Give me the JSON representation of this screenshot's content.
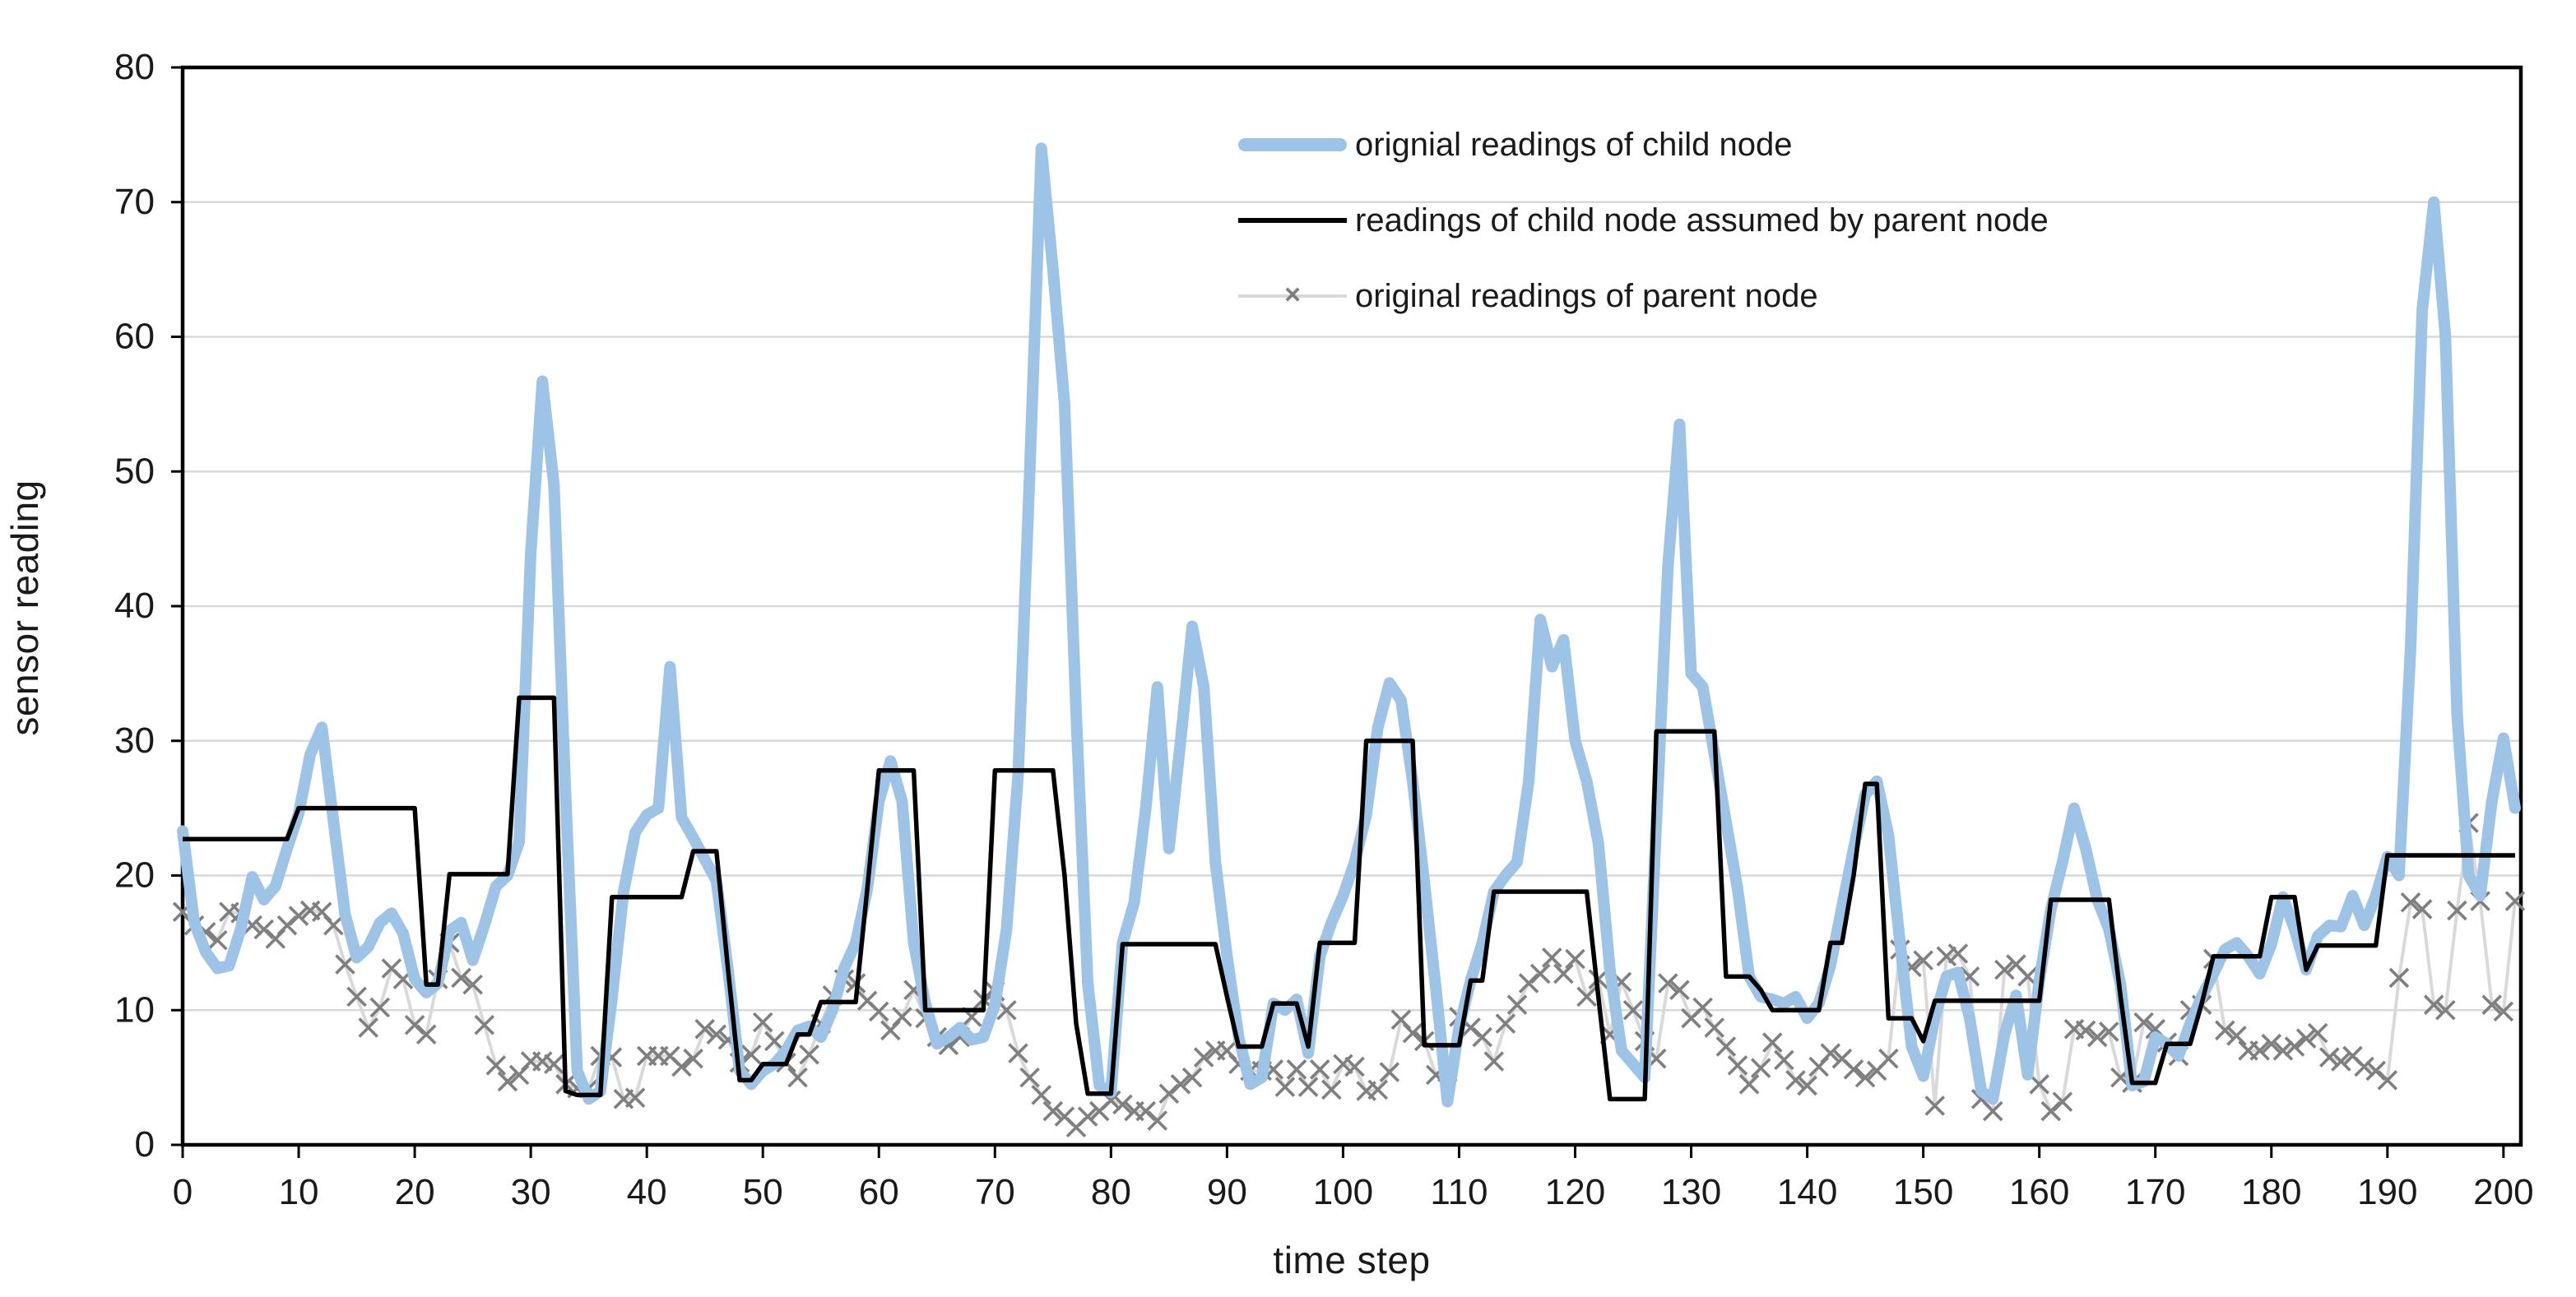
{
  "chart_data": {
    "type": "line",
    "title": "",
    "xlabel": "time step",
    "ylabel": "sensor reading",
    "xlim": [
      0,
      201.5
    ],
    "ylim": [
      0,
      80
    ],
    "x_ticks": [
      0,
      10,
      20,
      30,
      40,
      50,
      60,
      70,
      80,
      90,
      100,
      110,
      120,
      130,
      140,
      150,
      160,
      170,
      180,
      190,
      200
    ],
    "y_ticks": [
      0,
      10,
      20,
      30,
      40,
      50,
      60,
      70,
      80
    ],
    "grid": "horizontal",
    "gridline_color": "#D9D9D9",
    "frame_color": "#000000",
    "tick_label_color": "#1a1a1a",
    "x_step": 1,
    "legend_position": "top-center-inside",
    "series": [
      {
        "label": "orignial readings of child node",
        "color": "#9DC3E6",
        "style": "thick-line",
        "values": [
          23.3,
          16.5,
          14.3,
          13.1,
          13.3,
          16.0,
          19.9,
          18.2,
          19.2,
          22.0,
          24.6,
          29.0,
          31.0,
          24.0,
          17.1,
          13.9,
          14.7,
          16.5,
          17.2,
          15.7,
          12.3,
          11.3,
          12.0,
          15.9,
          16.5,
          13.7,
          16.3,
          19.2,
          20.0,
          22.5,
          44.0,
          56.7,
          49.0,
          26.0,
          5.5,
          3.4,
          4.0,
          10.9,
          18.8,
          23.2,
          24.5,
          25.0,
          35.5,
          24.3,
          22.8,
          21.2,
          19.6,
          13.0,
          5.5,
          4.5,
          5.5,
          6.0,
          7.0,
          8.5,
          8.8,
          8.0,
          10.0,
          13.1,
          15.0,
          19.0,
          25.5,
          28.5,
          25.5,
          15.0,
          10.5,
          7.5,
          8.0,
          8.7,
          7.8,
          8.0,
          10.4,
          16.0,
          27.5,
          50.0,
          74.0,
          65.0,
          55.0,
          32.0,
          12.0,
          4.4,
          3.9,
          15.0,
          18.0,
          25.0,
          34.0,
          22.0,
          30.0,
          38.5,
          34.0,
          21.0,
          14.0,
          8.0,
          4.5,
          5.0,
          10.5,
          10.0,
          10.8,
          6.8,
          14.0,
          16.5,
          18.5,
          21.0,
          24.5,
          31.0,
          34.3,
          33.0,
          27.0,
          19.5,
          11.6,
          3.2,
          8.7,
          12.2,
          15.0,
          18.8,
          20.0,
          21.0,
          27.0,
          39.0,
          35.5,
          37.5,
          30.0,
          27.0,
          22.4,
          13.0,
          7.0,
          6.0,
          5.0,
          24.0,
          43.0,
          53.5,
          35.0,
          34.0,
          29.0,
          24.0,
          19.0,
          12.5,
          11.0,
          10.8,
          10.5,
          11.0,
          9.4,
          10.5,
          13.3,
          17.7,
          22.0,
          26.0,
          27.0,
          23.0,
          15.0,
          7.3,
          5.1,
          9.5,
          12.5,
          12.8,
          9.4,
          4.0,
          3.4,
          8.2,
          11.1,
          5.2,
          12.2,
          17.5,
          21.0,
          25.0,
          22.0,
          18.2,
          16.0,
          11.9,
          4.4,
          4.7,
          8.0,
          7.5,
          6.6,
          9.0,
          11.0,
          12.7,
          14.5,
          15.0,
          14.0,
          12.7,
          14.9,
          18.4,
          16.0,
          13.0,
          15.5,
          16.3,
          16.2,
          18.5,
          16.3,
          18.5,
          21.4,
          20.0,
          37.0,
          62.0,
          70.0,
          60.0,
          32.0,
          20.0,
          18.5,
          25.5,
          30.2,
          25.0
        ]
      },
      {
        "label": "readings of child node assumed by parent node",
        "color": "#000000",
        "style": "line",
        "values": [
          22.7,
          22.7,
          22.7,
          22.7,
          22.7,
          22.7,
          22.7,
          22.7,
          22.7,
          22.7,
          25.0,
          25.0,
          25.0,
          25.0,
          25.0,
          25.0,
          25.0,
          25.0,
          25.0,
          25.0,
          25.0,
          11.9,
          11.9,
          20.1,
          20.1,
          20.1,
          20.1,
          20.1,
          20.1,
          33.2,
          33.2,
          33.2,
          33.2,
          4.0,
          3.7,
          3.7,
          3.7,
          18.4,
          18.4,
          18.4,
          18.4,
          18.4,
          18.4,
          18.4,
          21.8,
          21.8,
          21.8,
          13.0,
          4.8,
          4.8,
          6.0,
          6.0,
          6.0,
          8.2,
          8.2,
          10.6,
          10.6,
          10.6,
          10.6,
          19.0,
          27.8,
          27.8,
          27.8,
          27.8,
          10.0,
          10.0,
          10.0,
          10.0,
          10.0,
          10.0,
          27.8,
          27.8,
          27.8,
          27.8,
          27.8,
          27.8,
          20.0,
          9.0,
          3.8,
          3.8,
          3.8,
          14.9,
          14.9,
          14.9,
          14.9,
          14.9,
          14.9,
          14.9,
          14.9,
          14.9,
          11.0,
          7.3,
          7.3,
          7.3,
          10.5,
          10.5,
          10.5,
          7.3,
          15.0,
          15.0,
          15.0,
          15.0,
          30.0,
          30.0,
          30.0,
          30.0,
          30.0,
          7.4,
          7.4,
          7.4,
          7.4,
          12.2,
          12.2,
          18.8,
          18.8,
          18.8,
          18.8,
          18.8,
          18.8,
          18.8,
          18.8,
          18.8,
          11.0,
          3.4,
          3.4,
          3.4,
          3.4,
          30.7,
          30.7,
          30.7,
          30.7,
          30.7,
          30.7,
          12.5,
          12.5,
          12.5,
          11.5,
          10.0,
          10.0,
          10.0,
          10.0,
          10.0,
          15.0,
          15.0,
          20.0,
          26.8,
          26.8,
          9.4,
          9.4,
          9.4,
          7.7,
          10.7,
          10.7,
          10.7,
          10.7,
          10.7,
          10.7,
          10.7,
          10.7,
          10.7,
          10.7,
          18.2,
          18.2,
          18.2,
          18.2,
          18.2,
          18.2,
          11.0,
          4.6,
          4.6,
          4.6,
          7.5,
          7.5,
          7.5,
          10.5,
          14.0,
          14.0,
          14.0,
          14.0,
          14.0,
          18.4,
          18.4,
          18.4,
          13.0,
          14.8,
          14.8,
          14.8,
          14.8,
          14.8,
          14.8,
          21.5,
          21.5,
          21.5,
          21.5,
          21.5,
          21.5,
          21.5,
          21.5,
          21.5,
          21.5,
          21.5,
          21.5
        ]
      },
      {
        "label": "original readings of parent node",
        "color": "#D9D9D9",
        "marker": "x",
        "marker_color": "#7F7F7F",
        "style": "line-x-marker",
        "values": [
          17.3,
          16.3,
          15.8,
          15.2,
          17.3,
          17.2,
          16.3,
          16.0,
          15.3,
          16.3,
          17.0,
          17.4,
          17.3,
          16.3,
          13.4,
          11.0,
          8.7,
          10.2,
          13.1,
          12.3,
          8.9,
          8.2,
          12.3,
          15.0,
          12.4,
          11.9,
          8.9,
          5.9,
          4.7,
          5.2,
          6.2,
          6.2,
          6.0,
          4.5,
          4.2,
          4.2,
          6.6,
          6.5,
          3.4,
          3.5,
          6.6,
          6.6,
          6.6,
          5.8,
          6.4,
          8.6,
          8.2,
          7.8,
          6.1,
          6.7,
          9.1,
          7.7,
          6.1,
          5.0,
          6.7,
          9.0,
          11.1,
          12.3,
          12.0,
          10.7,
          9.9,
          8.5,
          9.5,
          11.5,
          9.4,
          8.0,
          7.4,
          8.0,
          9.5,
          10.8,
          11.4,
          10.0,
          6.8,
          5.0,
          3.7,
          2.5,
          2.1,
          1.3,
          2.1,
          2.5,
          3.3,
          3.0,
          2.5,
          2.5,
          1.8,
          3.8,
          4.5,
          5.0,
          6.5,
          7.0,
          7.0,
          6.0,
          5.5,
          5.5,
          5.6,
          4.3,
          5.6,
          4.3,
          5.6,
          4.1,
          6.0,
          5.8,
          4.0,
          4.1,
          5.4,
          9.3,
          8.3,
          7.7,
          5.2,
          5.4,
          9.5,
          8.7,
          8.0,
          6.2,
          9.0,
          10.4,
          12.0,
          12.7,
          13.9,
          12.7,
          13.8,
          11.0,
          12.3,
          8.2,
          12.1,
          10.0,
          7.7,
          6.4,
          12.0,
          11.5,
          9.4,
          10.2,
          8.7,
          7.3,
          5.9,
          4.5,
          5.7,
          7.6,
          6.3,
          4.8,
          4.4,
          5.8,
          6.8,
          6.4,
          5.6,
          5.0,
          5.5,
          6.4,
          14.5,
          13.2,
          13.7,
          2.9,
          14.0,
          14.2,
          12.5,
          3.4,
          2.5,
          13.0,
          13.4,
          12.5,
          4.5,
          2.5,
          3.2,
          8.6,
          8.5,
          8.0,
          8.4,
          5.0,
          4.6,
          9.1,
          8.6,
          7.6,
          6.6,
          10.0,
          10.4,
          13.8,
          8.5,
          8.1,
          7.0,
          7.0,
          7.5,
          7.0,
          7.3,
          7.9,
          8.3,
          6.5,
          6.2,
          6.6,
          5.8,
          5.5,
          4.8,
          12.4,
          18.0,
          17.5,
          10.4,
          10.0,
          17.4,
          23.9,
          18.1,
          10.4,
          9.9,
          18.1
        ]
      }
    ]
  }
}
